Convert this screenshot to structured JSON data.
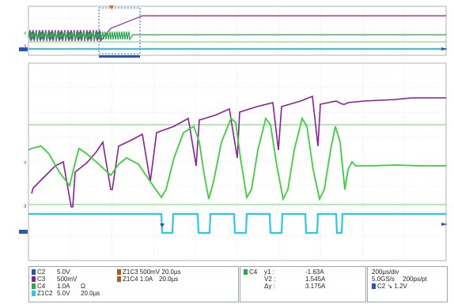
{
  "colors": {
    "ch2": "#2a57a8",
    "ch3": "#8a1f9a",
    "ch4": "#2aa84a",
    "z1c2": "#2fc7e6",
    "z1c3": "#8a1f9a",
    "z1c4": "#2aa84a",
    "trig": "#e06a00",
    "grid": "#dfe5e5",
    "bg": "#ffffff",
    "ref_line": "#6bd36b"
  },
  "markers": {
    "ch4_overview": "4",
    "ch3_overview": "3",
    "ch4_zoom": "4",
    "ch3_zoom": "3"
  },
  "channels": [
    {
      "name": "C2",
      "value": "5.0V",
      "unit": ""
    },
    {
      "name": "C3",
      "value": "500mV",
      "unit": ""
    },
    {
      "name": "C4",
      "value": "1.0A",
      "unit": "Ω"
    },
    {
      "name": "Z1C2",
      "value": "5.0V",
      "unit": "20.0µs"
    }
  ],
  "zoom_channels": [
    {
      "name": "Z1C3",
      "value": "500mV",
      "time": "20.0µs"
    },
    {
      "name": "Z1C4",
      "value": "1.0A",
      "time": "20.0µs"
    }
  ],
  "cursors": {
    "channel": "C4",
    "rows": [
      {
        "label": "y1 :",
        "value": "-1.63A"
      },
      {
        "label": "V2 :",
        "value": "1.545A"
      },
      {
        "label": "Δy :",
        "value": "3.175A"
      }
    ]
  },
  "timebase": {
    "horizontal": "200µs/div",
    "sample_rate": "5.0GS/s",
    "resolution": "200ps/pt",
    "trigger_channel": "C2",
    "trigger_level": "1.2V"
  }
}
